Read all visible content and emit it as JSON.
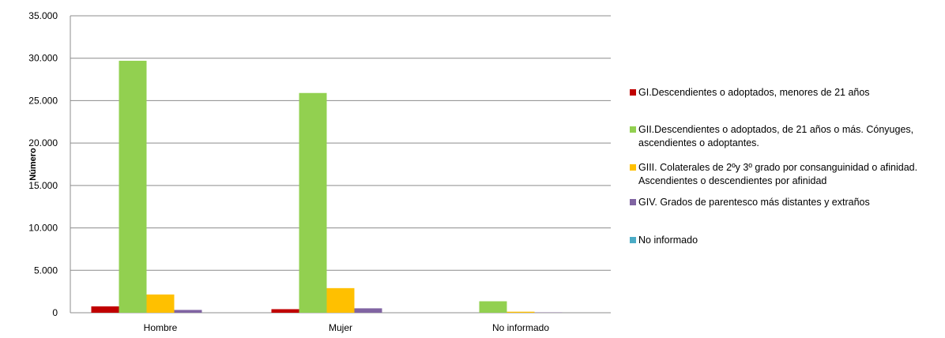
{
  "chart_data": {
    "type": "bar",
    "title": "",
    "xlabel": "",
    "ylabel": "Número",
    "ylim": [
      0,
      35000
    ],
    "yticks": [
      "0",
      "5.000",
      "10.000",
      "15.000",
      "20.000",
      "25.000",
      "30.000",
      "35.000"
    ],
    "categories": [
      "Hombre",
      "Mujer",
      "No informado"
    ],
    "grid": true,
    "legend_position": "right",
    "series": [
      {
        "name": "GI.Descendientes o adoptados, menores de 21 años",
        "color": "#c00000",
        "values": [
          750,
          420,
          0
        ]
      },
      {
        "name": "GII.Descendientes o adoptados, de 21 años o más. Cónyuges, ascendientes o adoptantes.",
        "color": "#92d050",
        "values": [
          29700,
          25900,
          1350
        ]
      },
      {
        "name": "GIII. Colaterales de 2ºy 3º grado por consanguinidad o afinidad. Ascendientes o descendientes por afinidad",
        "color": "#ffc000",
        "values": [
          2150,
          2900,
          120
        ]
      },
      {
        "name": "GIV. Grados de parentesco más distantes y extraños",
        "color": "#8064a2",
        "values": [
          330,
          520,
          30
        ]
      },
      {
        "name": "No informado",
        "color": "#4bacc6",
        "values": [
          0,
          0,
          0
        ]
      }
    ]
  }
}
